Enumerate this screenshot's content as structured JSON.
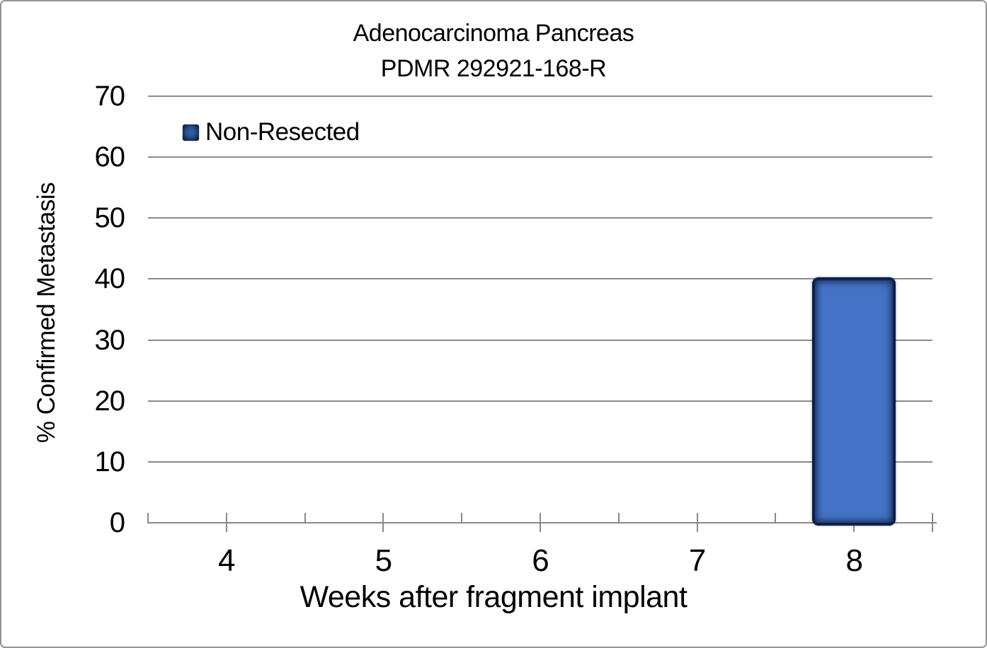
{
  "chart_data": {
    "type": "bar",
    "title": "Adenocarcinoma Pancreas",
    "subtitle": "PDMR 292921-168-R",
    "xlabel": "Weeks after fragment implant",
    "ylabel": "% Confirmed Metastasis",
    "categories": [
      "4",
      "5",
      "6",
      "7",
      "8"
    ],
    "series": [
      {
        "name": "Non-Resected",
        "values": [
          0,
          0,
          0,
          0,
          40
        ]
      }
    ],
    "ylim": [
      0,
      70
    ],
    "yticks": [
      0,
      10,
      20,
      30,
      40,
      50,
      60,
      70
    ],
    "grid": true,
    "legend": {
      "position": "inside-top-left",
      "entries": [
        {
          "label": "Non-Resected",
          "swatch_color": "#4472C4"
        }
      ]
    },
    "colors": {
      "bar_fill": "#4472C4",
      "bar_border": "#0D2149",
      "gridline": "#8C8C8C",
      "axis": "#898989",
      "text": "#000000"
    }
  }
}
